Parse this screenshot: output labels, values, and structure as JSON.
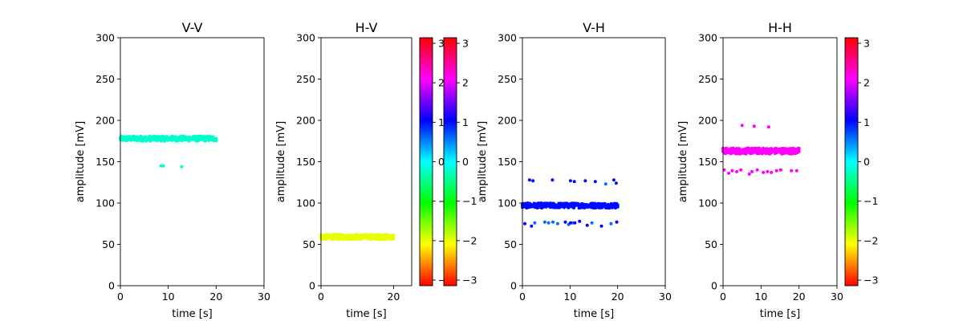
{
  "chart_data": [
    {
      "type": "scatter",
      "title": "V-V",
      "xlabel": "time [s]",
      "ylabel": "amplitude [mV]",
      "xlim": [
        0,
        30
      ],
      "ylim": [
        0,
        300
      ],
      "xticks": [
        "0",
        "10",
        "20",
        "30"
      ],
      "yticks": [
        "0",
        "50",
        "100",
        "150",
        "200",
        "250",
        "300"
      ],
      "color_value": -0.2,
      "series": [
        {
          "x_range": [
            0,
            20
          ],
          "y_center": 178,
          "y_spread": 3,
          "n_points": 90
        },
        {
          "points": [
            [
              8.5,
              145
            ],
            [
              9.0,
              145
            ],
            [
              12.8,
              144
            ]
          ]
        }
      ]
    },
    {
      "type": "scatter",
      "title": "H-V",
      "xlabel": "time [s]",
      "ylabel": "amplitude [mV]",
      "xlim": [
        0,
        25
      ],
      "ylim": [
        0,
        300
      ],
      "xticks": [
        "0",
        "20"
      ],
      "yticks": [
        "0",
        "50",
        "100",
        "150",
        "200",
        "250",
        "300"
      ],
      "color_value": -2.0,
      "series": [
        {
          "x_range": [
            0,
            20
          ],
          "y_center": 59,
          "y_spread": 3,
          "n_points": 90
        }
      ]
    },
    {
      "type": "scatter",
      "title": "V-H",
      "xlabel": "time [s]",
      "ylabel": "amplitude [mV]",
      "xlim": [
        0,
        30
      ],
      "ylim": [
        0,
        300
      ],
      "xticks": [
        "0",
        "10",
        "20",
        "30"
      ],
      "yticks": [
        "0",
        "50",
        "100",
        "150",
        "200",
        "250",
        "300"
      ],
      "color_value": 1.0,
      "series": [
        {
          "x_range": [
            0,
            20
          ],
          "y_center": 97,
          "y_spread": 3,
          "n_points": 90
        },
        {
          "color_value": 1.0,
          "points": [
            [
              1.5,
              128
            ],
            [
              2.2,
              127
            ],
            [
              6.3,
              128
            ],
            [
              10.1,
              127
            ],
            [
              10.9,
              126
            ],
            [
              13.2,
              127
            ],
            [
              15.3,
              126
            ],
            [
              19.2,
              128
            ],
            [
              19.7,
              124
            ]
          ]
        },
        {
          "color_value": 0.6,
          "points": [
            [
              17.5,
              123
            ],
            [
              2.6,
              76
            ],
            [
              4.7,
              77
            ],
            [
              5.5,
              76
            ],
            [
              6.4,
              77
            ],
            [
              7.4,
              75
            ],
            [
              9.7,
              74
            ],
            [
              10.5,
              76
            ],
            [
              14.6,
              76
            ],
            [
              18.6,
              75
            ]
          ]
        },
        {
          "color_value": 1.1,
          "points": [
            [
              0.5,
              75
            ],
            [
              1.9,
              72
            ],
            [
              9.0,
              77
            ],
            [
              10.1,
              76
            ],
            [
              11.0,
              76
            ],
            [
              12.0,
              78
            ],
            [
              13.6,
              73
            ],
            [
              16.6,
              72
            ],
            [
              19.8,
              77
            ]
          ]
        }
      ]
    },
    {
      "type": "scatter",
      "title": "H-H",
      "xlabel": "time [s]",
      "ylabel": "amplitude [mV]",
      "xlim": [
        0,
        30
      ],
      "ylim": [
        0,
        300
      ],
      "xticks": [
        "0",
        "10",
        "20",
        "30"
      ],
      "yticks": [
        "0",
        "50",
        "100",
        "150",
        "200",
        "250",
        "300"
      ],
      "color_value": 2.1,
      "series": [
        {
          "x_range": [
            0,
            20
          ],
          "y_center": 163,
          "y_spread": 3.5,
          "n_points": 90
        },
        {
          "points": [
            [
              5.0,
              194
            ],
            [
              8.2,
              193
            ],
            [
              12.0,
              192
            ],
            [
              0.3,
              140
            ],
            [
              1.5,
              136
            ],
            [
              2.4,
              139
            ],
            [
              3.6,
              138
            ],
            [
              4.7,
              140
            ],
            [
              6.9,
              135
            ],
            [
              7.6,
              138
            ],
            [
              9.0,
              140
            ],
            [
              10.6,
              137
            ],
            [
              11.7,
              138
            ],
            [
              12.7,
              137
            ],
            [
              14.1,
              139
            ],
            [
              15.2,
              140
            ],
            [
              18.0,
              139
            ],
            [
              19.4,
              139
            ]
          ]
        }
      ]
    }
  ],
  "colorbars": [
    {
      "cmap": "hsv",
      "range": [
        -3.1416,
        3.1416
      ],
      "ticks": [
        "3",
        "2",
        "1",
        "0",
        "−1",
        "−2",
        "−3"
      ]
    },
    {
      "cmap": "hsv",
      "range": [
        -3.1416,
        3.1416
      ],
      "ticks": [
        "3",
        "2",
        "1",
        "0",
        "−1",
        "−2",
        "−3"
      ]
    },
    {
      "cmap": "hsv",
      "range": [
        -3.1416,
        3.1416
      ],
      "ticks": [
        "3",
        "2",
        "1",
        "0",
        "−1",
        "−2",
        "−3"
      ]
    }
  ]
}
